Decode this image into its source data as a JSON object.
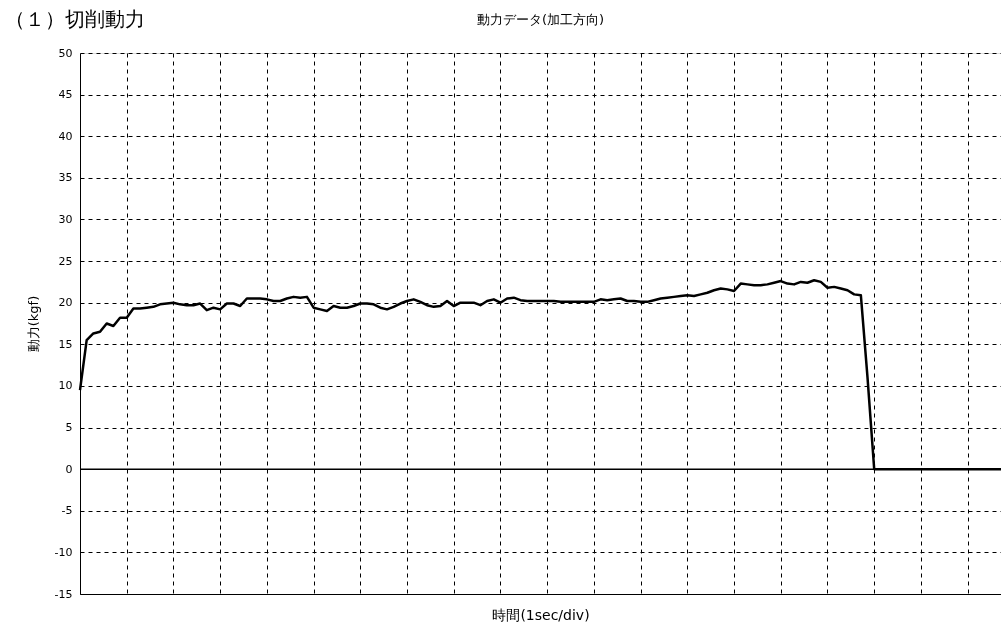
{
  "chart_data": {
    "type": "line",
    "title": "動力データ(加工方向)",
    "annotations": [
      "（１）切削動力"
    ],
    "xlabel": "時間(1sec/div)",
    "ylabel": "動力(kgf)",
    "categories": [
      null,
      null,
      null,
      null,
      null,
      null,
      null,
      null,
      null,
      null,
      null,
      null,
      null,
      null,
      null,
      null,
      null,
      null,
      null,
      null,
      null,
      null,
      null,
      null,
      null,
      null,
      null,
      null,
      null,
      null,
      null,
      null,
      null,
      null,
      null,
      null,
      null,
      null,
      null,
      null,
      null,
      null,
      null,
      null,
      null,
      null,
      null,
      null,
      null,
      null,
      null,
      null,
      null,
      null,
      null,
      null,
      null,
      null,
      null,
      null,
      null,
      null,
      null,
      null,
      null,
      null,
      null,
      null,
      null,
      null,
      null,
      null,
      null,
      null,
      null,
      null,
      null,
      null,
      null,
      null,
      null,
      null,
      null,
      null,
      null,
      null,
      null,
      null,
      null,
      null,
      null,
      null,
      null,
      null,
      null,
      null,
      null,
      null,
      null,
      null,
      null,
      null,
      null,
      null,
      null,
      null,
      null,
      null,
      null,
      null,
      null,
      null,
      null,
      null,
      null,
      null,
      null,
      null,
      null,
      null,
      null,
      null,
      null,
      null,
      null,
      null,
      null,
      null,
      null,
      null,
      null,
      null,
      null,
      null,
      null,
      null,
      null,
      null,
      null
    ],
    "series": [
      {
        "color": "#000000",
        "values": [
          9.5,
          15.5,
          16.3,
          16.5,
          17.5,
          17.2,
          18.2,
          18.2,
          19.3,
          19.3,
          19.4,
          19.5,
          19.8,
          19.9,
          20.0,
          19.8,
          19.7,
          19.7,
          19.9,
          19.1,
          19.4,
          19.2,
          19.9,
          19.9,
          19.6,
          20.5,
          20.5,
          20.5,
          20.4,
          20.2,
          20.2,
          20.5,
          20.7,
          20.6,
          20.7,
          19.4,
          19.2,
          19.0,
          19.6,
          19.4,
          19.4,
          19.6,
          19.9,
          19.9,
          19.8,
          19.4,
          19.2,
          19.5,
          19.9,
          20.2,
          20.4,
          20.1,
          19.7,
          19.5,
          19.6,
          20.2,
          19.6,
          20.0,
          20.0,
          20.0,
          19.7,
          20.2,
          20.4,
          20.0,
          20.5,
          20.6,
          20.3,
          20.2,
          20.2,
          20.2,
          20.2,
          20.2,
          20.1,
          20.1,
          20.1,
          20.1,
          20.1,
          20.1,
          20.4,
          20.3,
          20.4,
          20.5,
          20.2,
          20.2,
          20.1,
          20.1,
          20.3,
          20.5,
          20.6,
          20.7,
          20.8,
          20.9,
          20.8,
          21.0,
          21.2,
          21.5,
          21.7,
          21.6,
          21.4,
          22.3,
          22.2,
          22.1,
          22.1,
          22.2,
          22.4,
          22.6,
          22.3,
          22.2,
          22.5,
          22.4,
          22.7,
          22.5,
          21.8,
          21.9,
          21.7,
          21.5,
          21.0,
          20.9,
          11.0,
          0,
          0,
          0,
          0,
          0,
          0,
          0,
          0,
          0,
          0,
          0,
          0,
          0,
          0,
          0,
          0,
          0,
          0,
          0,
          0
        ]
      }
    ],
    "ylim": [
      -15,
      50
    ],
    "yticks": [
      -15,
      -10,
      -5,
      0,
      5,
      10,
      15,
      20,
      25,
      30,
      35,
      40,
      45,
      50
    ],
    "ref_lines": [
      {
        "axis": "y",
        "value": 0,
        "color": "#000000"
      }
    ],
    "grid": true,
    "marker": "none",
    "line_style": "solid",
    "tick_labels": "y"
  }
}
